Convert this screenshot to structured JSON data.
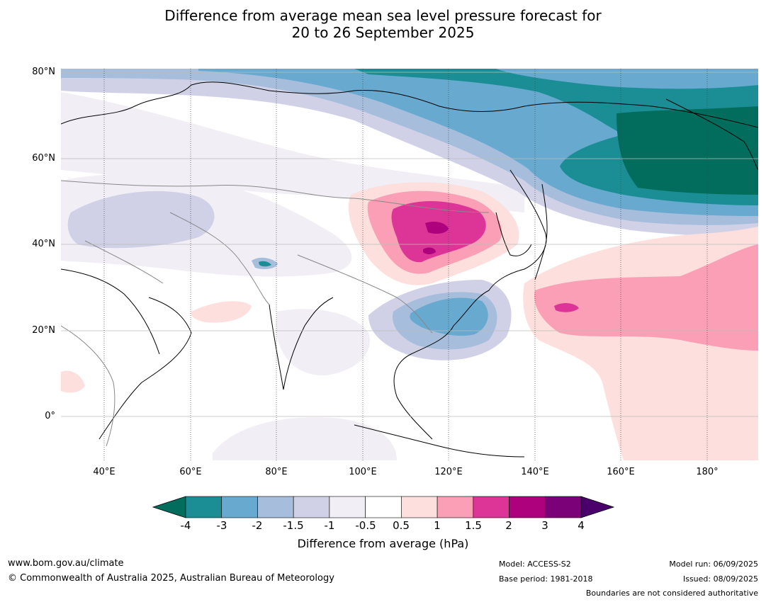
{
  "title_line1": "Difference from average mean sea level pressure forecast for",
  "title_line2": "20 to 26 September 2025",
  "lat_labels": [
    "80°N",
    "60°N",
    "40°N",
    "20°N",
    "0°"
  ],
  "lon_labels": [
    "40°E",
    "60°E",
    "80°E",
    "100°E",
    "120°E",
    "140°E",
    "160°E",
    "180°"
  ],
  "colorbar": {
    "ticks": [
      "-4",
      "-3",
      "-2",
      "-1.5",
      "-1",
      "-0.5",
      "0.5",
      "1",
      "1.5",
      "2",
      "3",
      "4"
    ],
    "colors": [
      "#1b8e95",
      "#67a9cf",
      "#a6bddb",
      "#d0d1e6",
      "#f1eef6",
      "#ffffff",
      "#fde0dd",
      "#fa9fb5",
      "#dd3497",
      "#ae017e",
      "#7a0177"
    ],
    "under_color": "#026d5c",
    "over_color": "#49006a",
    "title": "Difference from average (hPa)"
  },
  "footer": {
    "url": "www.bom.gov.au/climate",
    "copyright": "© Commonwealth of Australia 2025, Australian Bureau of Meteorology",
    "model": "Model: ACCESS-S2",
    "base_period": "Base period: 1981-2018",
    "model_run": "Model run: 06/09/2025",
    "issued": "Issued: 08/09/2025",
    "disclaimer": "Boundaries are not considered authoritative"
  }
}
